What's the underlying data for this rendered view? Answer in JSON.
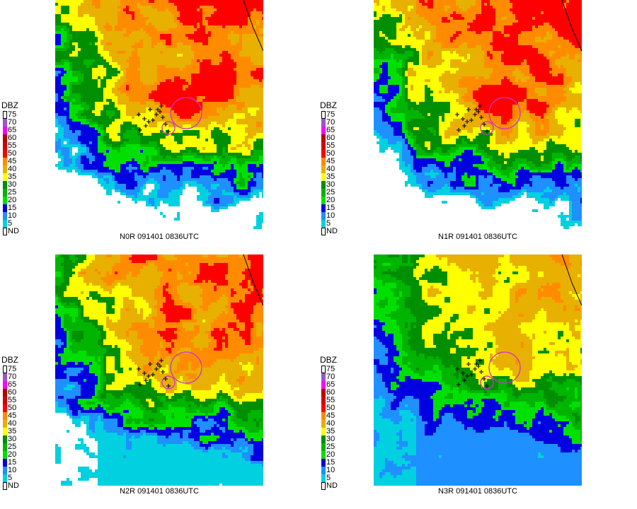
{
  "legend": {
    "title": "DBZ",
    "levels": [
      {
        "label": "75",
        "color": "#ffffff"
      },
      {
        "label": "70",
        "color": "#9955c9"
      },
      {
        "label": "65",
        "color": "#ff00ff"
      },
      {
        "label": "60",
        "color": "#b80000"
      },
      {
        "label": "55",
        "color": "#d40000"
      },
      {
        "label": "50",
        "color": "#ff0000"
      },
      {
        "label": "45",
        "color": "#ff8c00"
      },
      {
        "label": "40",
        "color": "#e8b000"
      },
      {
        "label": "35",
        "color": "#ffff00"
      },
      {
        "label": "30",
        "color": "#008f00"
      },
      {
        "label": "25",
        "color": "#00b400"
      },
      {
        "label": "20",
        "color": "#00e000"
      },
      {
        "label": "15",
        "color": "#0000e0"
      },
      {
        "label": "10",
        "color": "#1e90ff"
      },
      {
        "label": "5",
        "color": "#00d0e0"
      },
      {
        "label": "ND",
        "color": "#ffffff"
      }
    ]
  },
  "panels": [
    {
      "caption": "N0R 091401 0836UTC",
      "product": "N0R",
      "intensity": "high"
    },
    {
      "caption": "N1R 091401 0836UTC",
      "product": "N1R",
      "intensity": "high"
    },
    {
      "caption": "N2R 091401 0836UTC",
      "product": "N2R",
      "intensity": "mid"
    },
    {
      "caption": "N3R 091401 0836UTC",
      "product": "N3R",
      "intensity": "low"
    }
  ],
  "map_colors": {
    "ring": "#cc33cc",
    "marker": "#000000"
  }
}
